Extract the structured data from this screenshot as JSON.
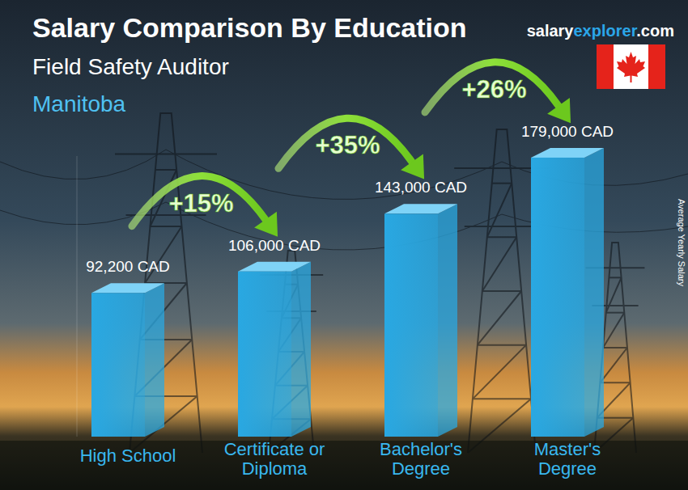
{
  "chart_data": {
    "type": "bar",
    "title": "Salary Comparison By Education",
    "subtitle": "Field Safety Auditor",
    "location": "Manitoba",
    "source": [
      "salary",
      "explorer",
      ".com"
    ],
    "y_label": "Average Yearly Salary",
    "categories": [
      "High School",
      "Certificate or Diploma",
      "Bachelor's Degree",
      "Master's Degree"
    ],
    "values": [
      92200,
      106000,
      143000,
      179000
    ],
    "value_labels": [
      "92,200 CAD",
      "106,000 CAD",
      "143,000 CAD",
      "179,000 CAD"
    ],
    "annotations": [
      "+15%",
      "+35%",
      "+26%"
    ],
    "color": "#29a8e2",
    "ylim": [
      0,
      180000
    ],
    "data_labels": true,
    "tick_labels": false,
    "grid": false
  }
}
